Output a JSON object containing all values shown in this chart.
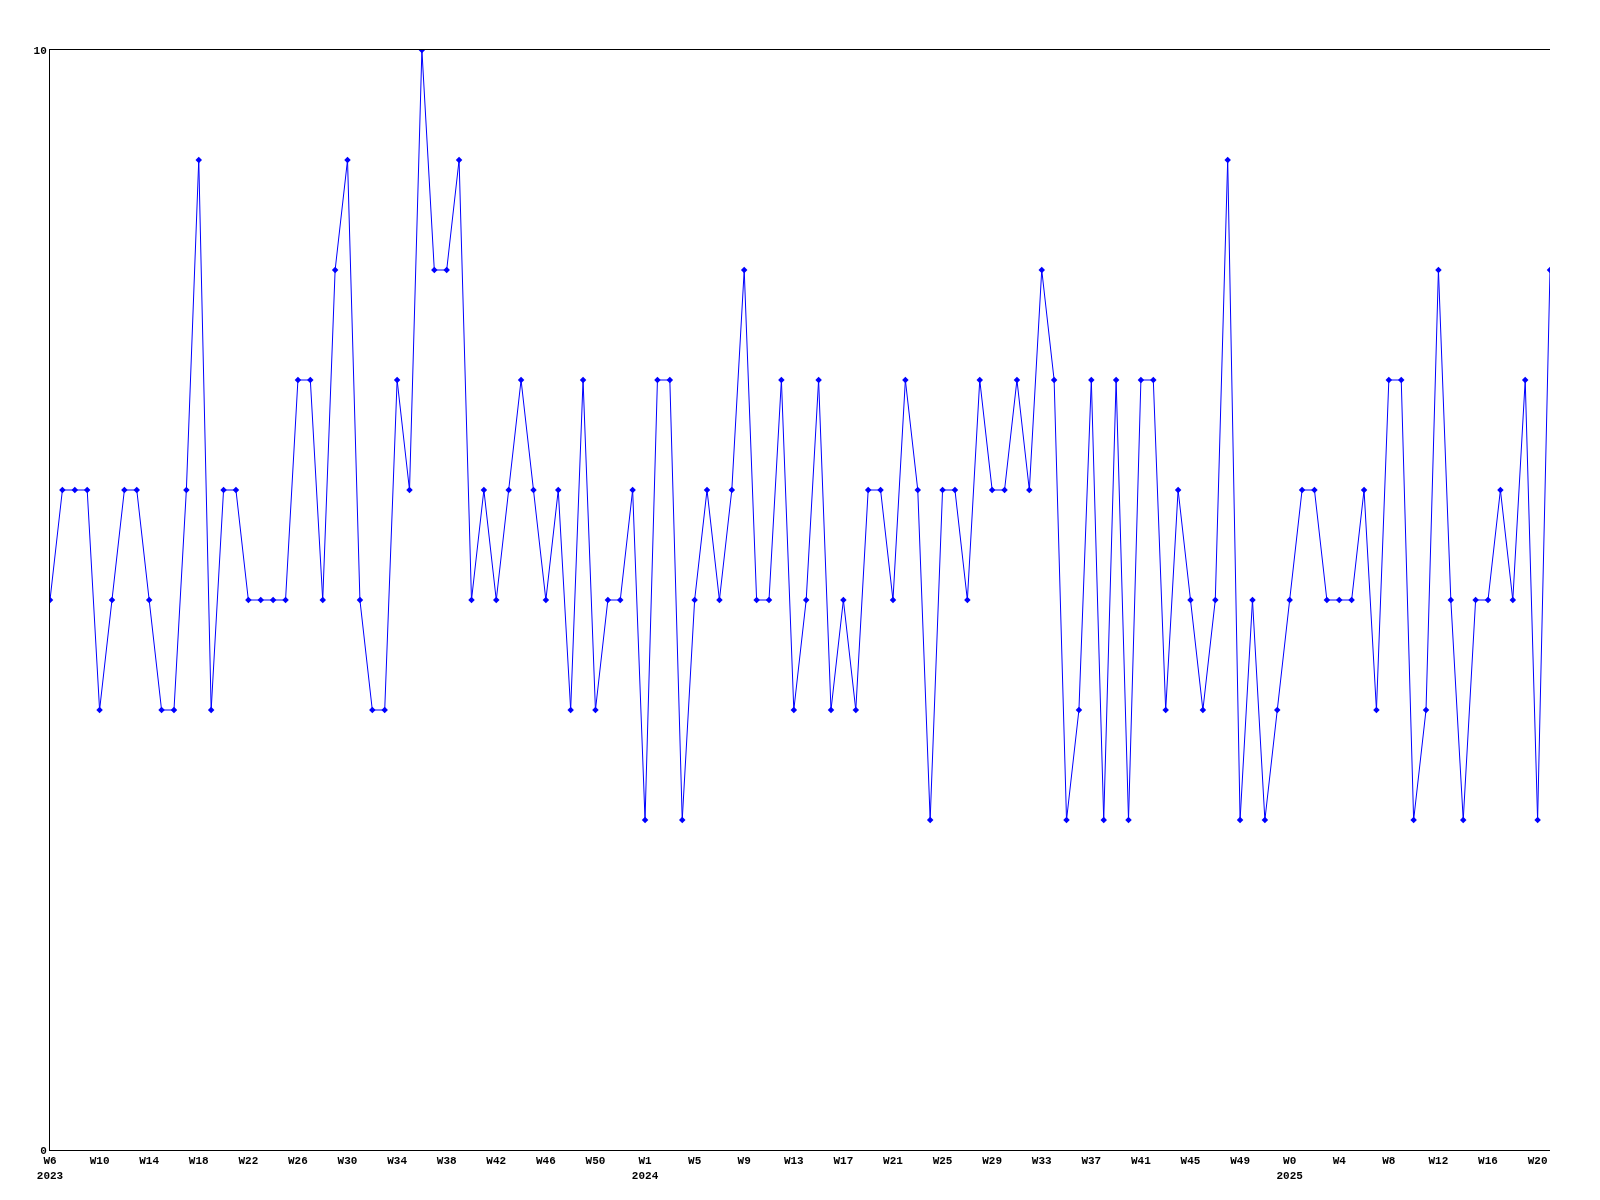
{
  "chart_data": {
    "type": "line",
    "categories": [
      "W6\n2023",
      null,
      null,
      null,
      "W10",
      null,
      null,
      null,
      "W14",
      null,
      null,
      null,
      "W18",
      null,
      null,
      null,
      "W22",
      null,
      null,
      null,
      "W26",
      null,
      null,
      null,
      "W30",
      null,
      null,
      null,
      "W34",
      null,
      null,
      null,
      "W38",
      null,
      null,
      null,
      "W42",
      null,
      null,
      null,
      "W46",
      null,
      null,
      null,
      "W50",
      null,
      null,
      null,
      "W1\n2024",
      null,
      null,
      null,
      "W5",
      null,
      null,
      null,
      "W9",
      null,
      null,
      null,
      "W13",
      null,
      null,
      null,
      "W17",
      null,
      null,
      null,
      "W21",
      null,
      null,
      null,
      "W25",
      null,
      null,
      null,
      "W29",
      null,
      null,
      null,
      "W33",
      null,
      null,
      null,
      "W37",
      null,
      null,
      null,
      "W41",
      null,
      null,
      null,
      "W45",
      null,
      null,
      null,
      "W49",
      null,
      null,
      null,
      "W0\n2025",
      null,
      null,
      null,
      "W4",
      null,
      null,
      null,
      "W8",
      null,
      null,
      null,
      "W12",
      null,
      null,
      null,
      "W16",
      null,
      null,
      null,
      "W20",
      null
    ],
    "series": [
      {
        "color": "#0000ff",
        "values": [
          5,
          6,
          6,
          6,
          4,
          5,
          6,
          6,
          5,
          4,
          4,
          6,
          9,
          4,
          6,
          6,
          5,
          5,
          5,
          5,
          7,
          7,
          5,
          8,
          9,
          5,
          4,
          4,
          7,
          6,
          10,
          8,
          8,
          9,
          5,
          6,
          5,
          6,
          7,
          6,
          5,
          6,
          4,
          7,
          4,
          5,
          5,
          6,
          3,
          7,
          7,
          3,
          5,
          6,
          5,
          6,
          8,
          5,
          5,
          7,
          4,
          5,
          7,
          4,
          5,
          4,
          6,
          6,
          5,
          7,
          6,
          3,
          6,
          6,
          5,
          7,
          6,
          6,
          7,
          6,
          8,
          7,
          3,
          4,
          7,
          3,
          7,
          3,
          7,
          7,
          4,
          6,
          5,
          4,
          5,
          9,
          3,
          5,
          3,
          4,
          5,
          6,
          6,
          5,
          5,
          5,
          6,
          4,
          7,
          7,
          3,
          4,
          8,
          5,
          3,
          5,
          5,
          6,
          5,
          7,
          3,
          8
        ]
      }
    ],
    "ylim": [
      0,
      10
    ],
    "yticks": [
      0,
      10
    ],
    "grid": false,
    "marker": "diamond",
    "line_style": "solid"
  }
}
